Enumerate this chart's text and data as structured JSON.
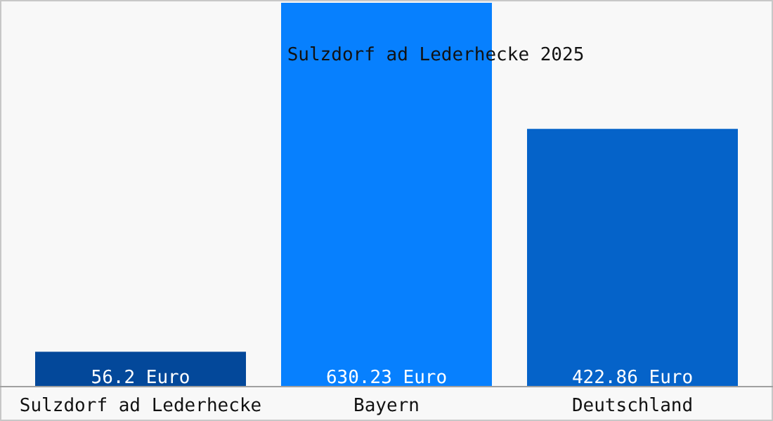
{
  "chart_data": {
    "type": "bar",
    "title": "Sulzdorf ad Lederhecke 2025",
    "categories": [
      "Sulzdorf ad Lederhecke",
      "Bayern",
      "Deutschland"
    ],
    "values": [
      56.2,
      630.23,
      422.86
    ],
    "colors": [
      "#03489a",
      "#0780fe",
      "#0563c9"
    ],
    "value_labels": [
      "56.2 Euro",
      "630.23 Euro",
      "422.86 Euro"
    ]
  }
}
